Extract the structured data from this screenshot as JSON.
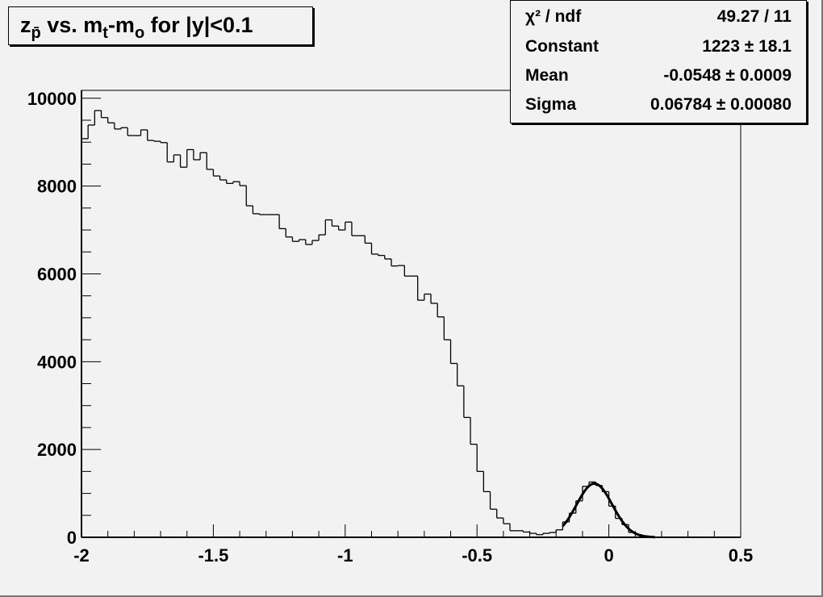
{
  "title": {
    "main": "z",
    "sub1": "p̄",
    "mid1": " vs. m",
    "sub2": "t",
    "mid2": "-m",
    "sub3": "o",
    "tail": " for |y|<0.1"
  },
  "stats": [
    {
      "key": "χ² / ndf",
      "value": "49.27 / 11"
    },
    {
      "key": "Constant",
      "value": "1223 ± 18.1"
    },
    {
      "key": "Mean",
      "value": "-0.0548 ± 0.0009"
    },
    {
      "key": "Sigma",
      "value": "0.06784 ± 0.00080"
    }
  ],
  "chart_data": {
    "type": "histogram",
    "title": "z_p̄ vs. m_t-m_o for |y|<0.1",
    "xlim": [
      -2,
      0.5
    ],
    "ylim": [
      0,
      10180
    ],
    "bin_width": 0.025,
    "x_ticks": [
      -2,
      -1.5,
      -1,
      -0.5,
      0,
      0.5
    ],
    "x_tick_labels": [
      "-2",
      "-1.5",
      "-1",
      "-0.5",
      "0",
      "0.5"
    ],
    "y_ticks": [
      0,
      2000,
      4000,
      6000,
      8000,
      10000
    ],
    "y_tick_labels": [
      "0",
      "2000",
      "4000",
      "6000",
      "8000",
      "10000"
    ],
    "grid": false,
    "bin_contents": [
      9080,
      9390,
      9720,
      9560,
      9440,
      9300,
      9330,
      9150,
      9150,
      9280,
      9040,
      9020,
      8990,
      8550,
      8710,
      8430,
      8830,
      8600,
      8760,
      8380,
      8230,
      8140,
      8060,
      8100,
      8010,
      7550,
      7370,
      7350,
      7350,
      7350,
      7030,
      6840,
      6740,
      6780,
      6670,
      6760,
      6890,
      7230,
      7090,
      7000,
      7180,
      6870,
      6870,
      6700,
      6450,
      6420,
      6340,
      6180,
      6190,
      5950,
      5950,
      5400,
      5540,
      5330,
      5020,
      4500,
      3960,
      3450,
      2730,
      2120,
      1500,
      1040,
      640,
      440,
      310,
      150,
      150,
      120,
      90,
      60,
      90,
      110,
      170,
      350,
      550,
      830,
      1160,
      1260,
      1180,
      1040,
      710,
      430,
      290,
      110,
      60,
      30,
      10,
      0,
      0,
      0,
      0,
      0,
      0,
      0,
      0,
      0,
      0,
      0,
      0,
      0
    ],
    "fit": {
      "function": "gaus",
      "constant": 1223,
      "mean": -0.0548,
      "sigma": 0.06784,
      "range": [
        -0.175,
        0.175
      ]
    },
    "legend": "top-right stats box"
  }
}
